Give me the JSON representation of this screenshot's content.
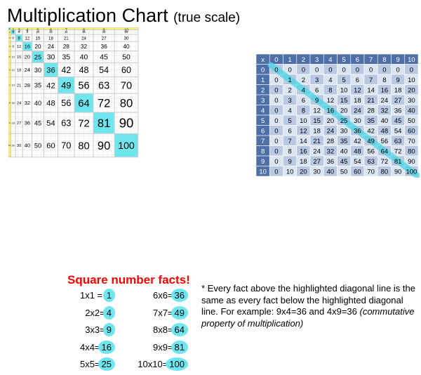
{
  "title": {
    "main": "Multiplication Chart",
    "sub": "(true scale)"
  },
  "scale_chart": {
    "n": 10,
    "top_row_numbers": [
      "2",
      "3",
      "4",
      "5",
      "6",
      "7",
      "8",
      "9",
      "10"
    ],
    "highlight_color": "#5fe3ec",
    "gridline_color": "#c9c9c9",
    "yellow_strip": "#fff36b",
    "rows": [
      [
        1,
        2,
        3,
        4,
        5,
        6,
        7,
        8,
        9,
        10
      ],
      [
        2,
        4,
        6,
        8,
        10,
        12,
        14,
        16,
        18,
        20
      ],
      [
        3,
        6,
        9,
        12,
        15,
        18,
        21,
        24,
        27,
        30
      ],
      [
        4,
        8,
        12,
        16,
        20,
        24,
        28,
        32,
        36,
        40
      ],
      [
        5,
        10,
        15,
        20,
        25,
        30,
        35,
        40,
        45,
        50
      ],
      [
        6,
        12,
        18,
        24,
        30,
        36,
        42,
        48,
        54,
        60
      ],
      [
        7,
        14,
        21,
        28,
        35,
        42,
        49,
        56,
        63,
        70
      ],
      [
        8,
        16,
        24,
        32,
        40,
        48,
        56,
        64,
        72,
        80
      ],
      [
        9,
        18,
        27,
        36,
        45,
        54,
        63,
        72,
        81,
        90
      ],
      [
        10,
        20,
        30,
        40,
        50,
        60,
        70,
        80,
        90,
        100
      ]
    ]
  },
  "small_table": {
    "corner_label": "x",
    "headers": [
      "0",
      "1",
      "2",
      "3",
      "4",
      "5",
      "6",
      "7",
      "8",
      "9",
      "10"
    ],
    "header_bg": "#4f6fa8",
    "row_bg_a": "#dce5f2",
    "row_bg_b": "#b9c9e4",
    "diagonal_color": "#4ed6e6"
  },
  "square_facts": {
    "heading": "Square number facts!",
    "left": [
      {
        "eq": "1x1 = ",
        "res": "1"
      },
      {
        "eq": "2x2=",
        "res": "4"
      },
      {
        "eq": "3x3=",
        "res": "9"
      },
      {
        "eq": "4x4=",
        "res": "16"
      },
      {
        "eq": "5x5=",
        "res": "25"
      }
    ],
    "right": [
      {
        "eq": "6x6=",
        "res": "36"
      },
      {
        "eq": "7x7=",
        "res": "49"
      },
      {
        "eq": "8x8=",
        "res": "64"
      },
      {
        "eq": "9x9=",
        "res": "81"
      },
      {
        "eq": "10x10=",
        "res": "100"
      }
    ]
  },
  "note": {
    "text": "* Every fact above the highlighted diagonal line is the same as every fact below the highlighted diagonal line. For example: 9x4=36 and 4x9=36 ",
    "italic": "(commutative property of multiplication)"
  }
}
